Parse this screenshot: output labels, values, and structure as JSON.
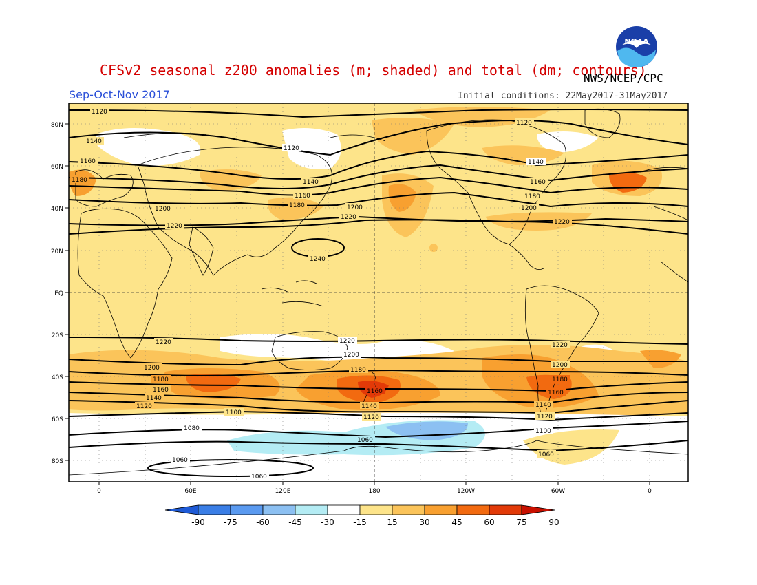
{
  "header": {
    "title": "CFSv2 seasonal z200 anomalies (m; shaded) and total (dm; contours)",
    "agency": "NWS/NCEP/CPC",
    "season": "Sep-Oct-Nov 2017",
    "initial_conditions": "Initial conditions: 22May2017-31May2017",
    "logo_text": "NOAA"
  },
  "map": {
    "lat_ticks": [
      "80N",
      "60N",
      "40N",
      "20N",
      "EQ",
      "20S",
      "40S",
      "60S",
      "80S"
    ],
    "lon_ticks": [
      "0",
      "60E",
      "120E",
      "180",
      "120W",
      "60W",
      "0"
    ],
    "contours": [
      {
        "value": 1060,
        "label": "1060"
      },
      {
        "value": 1080,
        "label": "1080"
      },
      {
        "value": 1100,
        "label": "1100"
      },
      {
        "value": 1120,
        "label": "1120"
      },
      {
        "value": 1140,
        "label": "1140"
      },
      {
        "value": 1160,
        "label": "1160"
      },
      {
        "value": 1180,
        "label": "1180"
      },
      {
        "value": 1200,
        "label": "1200"
      },
      {
        "value": 1220,
        "label": "1220"
      },
      {
        "value": 1240,
        "label": "1240"
      }
    ]
  },
  "colorbar": {
    "labels": [
      "-90",
      "-75",
      "-60",
      "-45",
      "-30",
      "-15",
      "15",
      "30",
      "45",
      "60",
      "75",
      "90"
    ],
    "colors": [
      "#1e5ad6",
      "#3a7ee6",
      "#5a9af0",
      "#8cc0f2",
      "#b4ecf4",
      "#ffffff",
      "#fde48a",
      "#fbc45a",
      "#f8a030",
      "#f26a10",
      "#e23a08",
      "#c81000"
    ]
  }
}
